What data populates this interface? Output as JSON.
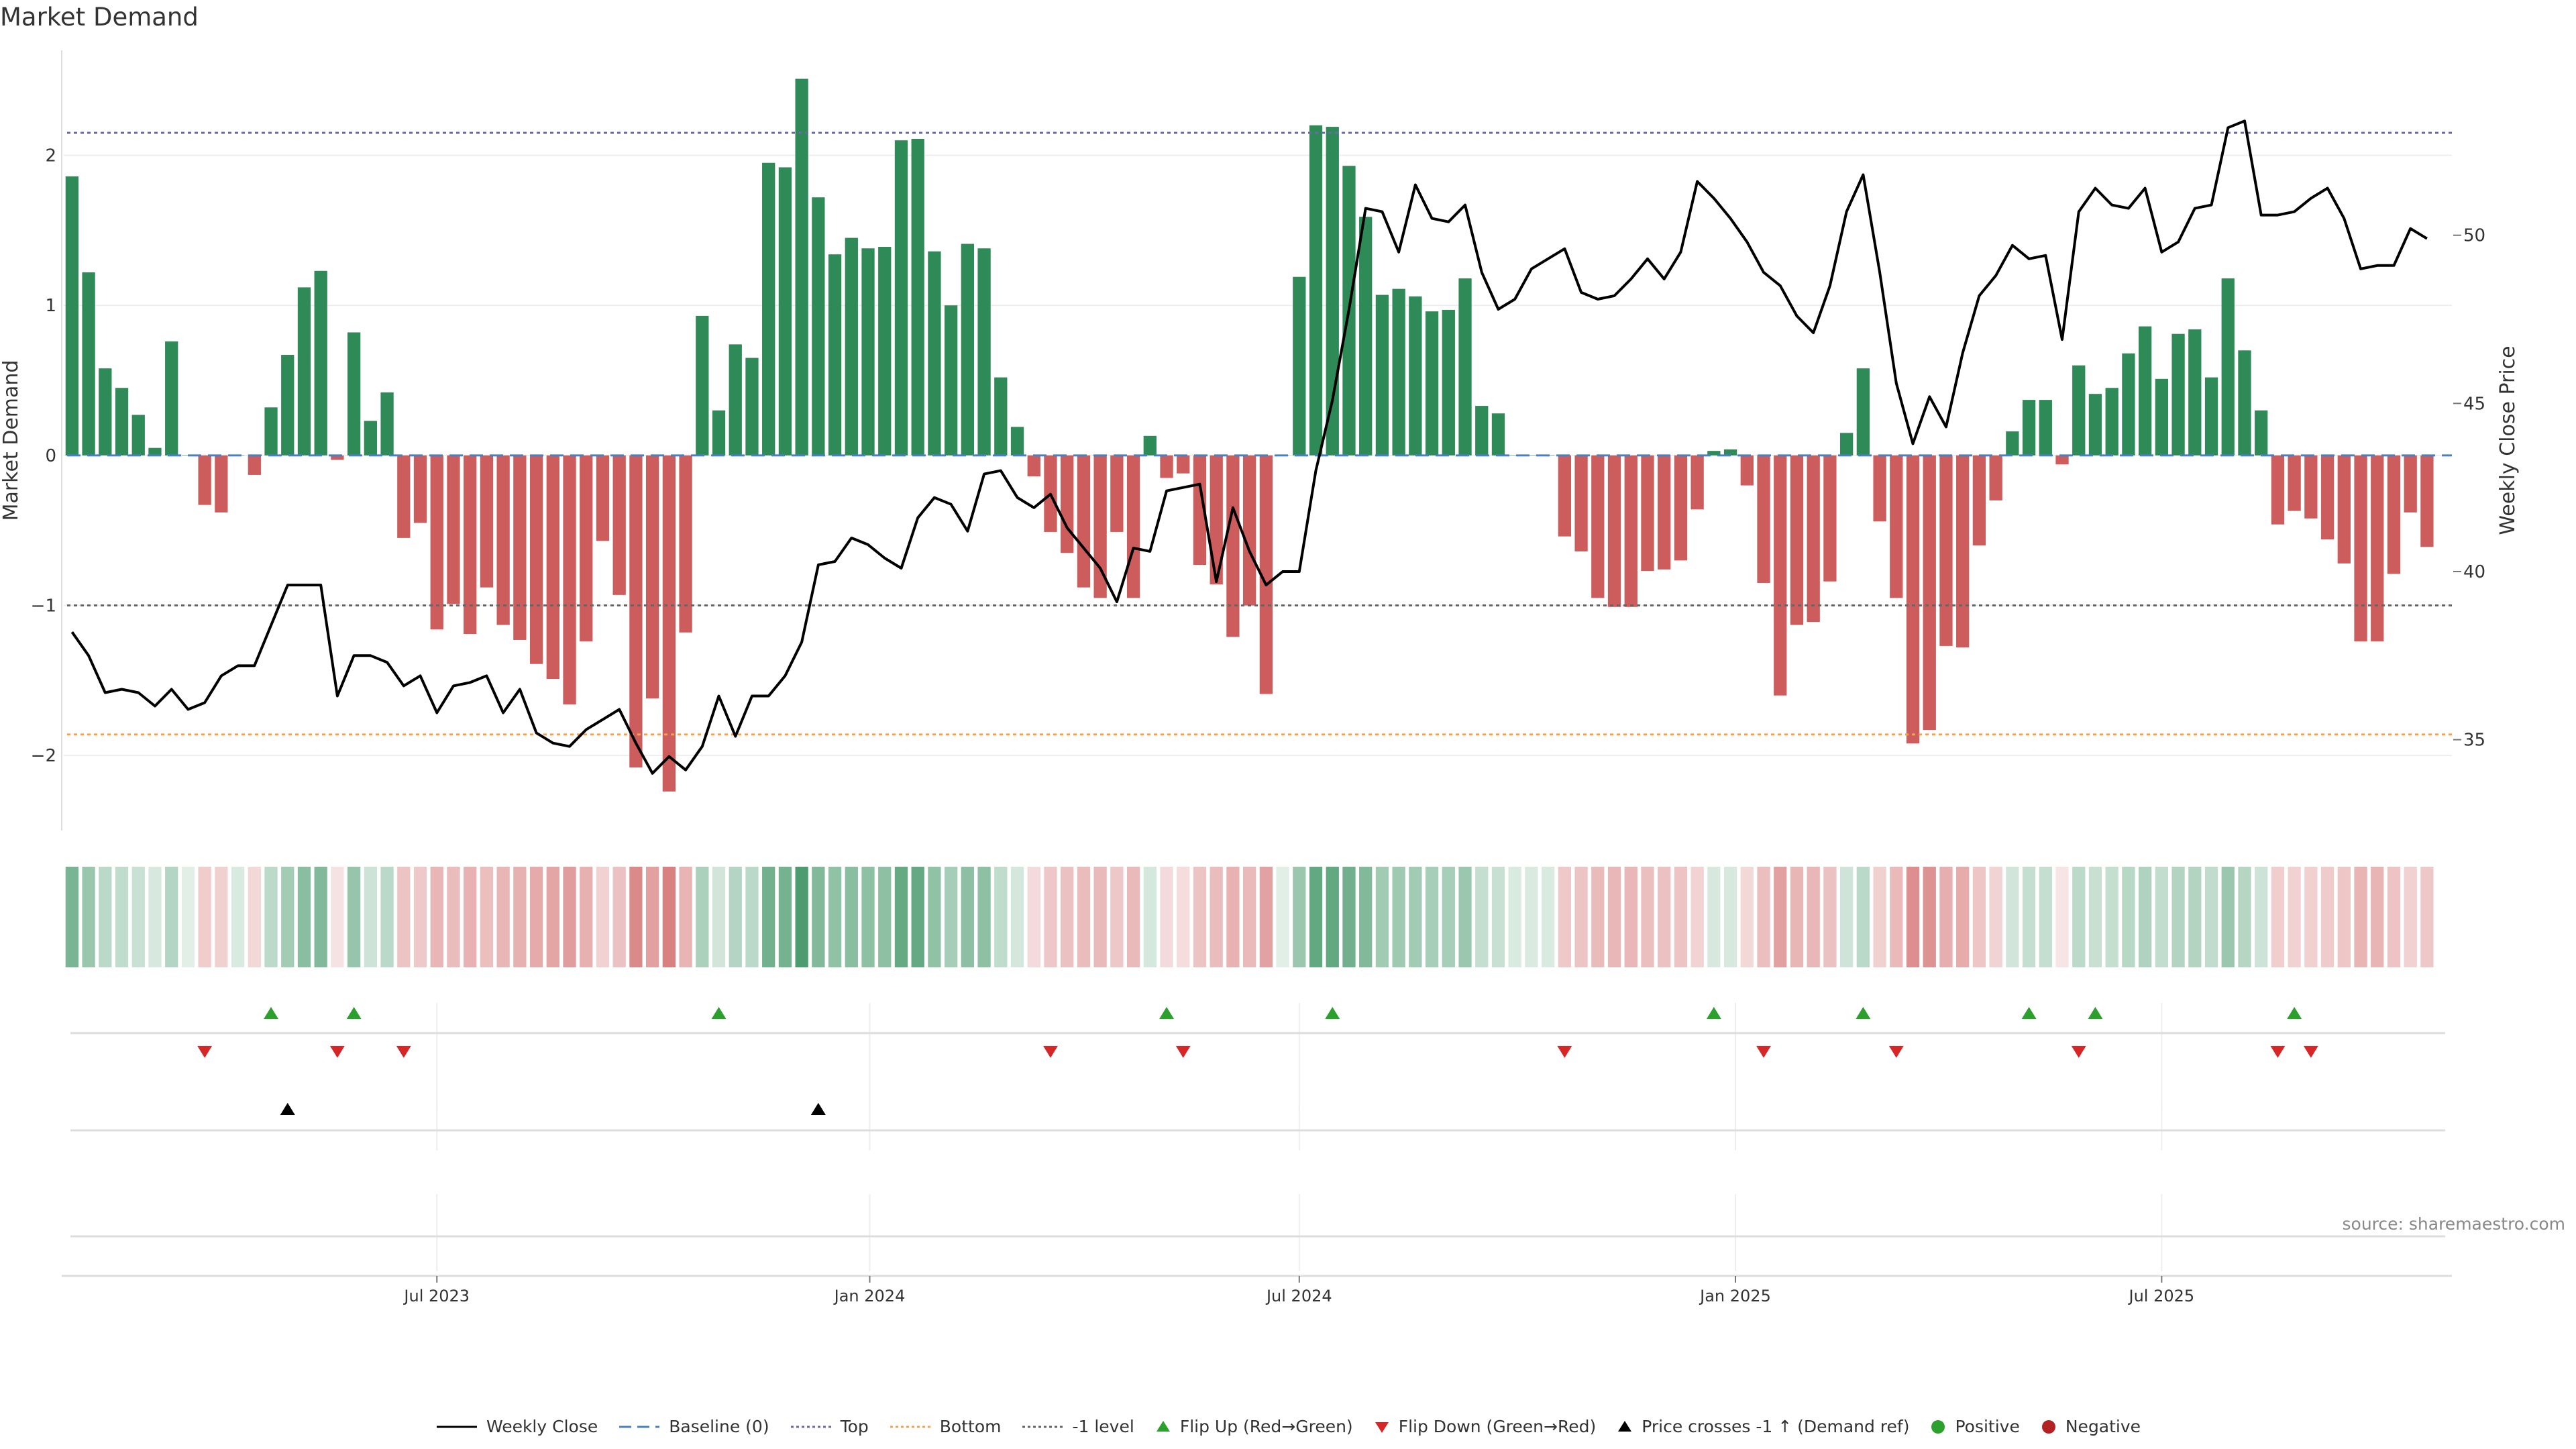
{
  "title": "Market Demand",
  "source_note": "source: sharemaestro.com",
  "colors": {
    "positive": "#2e8b57",
    "negative": "#cd5c5c",
    "price_line": "#000000",
    "baseline": "#4a7fc1",
    "top_line": "#6a6aa8",
    "bottom_line": "#f5a04a",
    "minus_one": "#666666",
    "flip_up": "#2ca02c",
    "flip_down": "#d62728",
    "price_cross": "#000000",
    "positive_dot": "#2ca02c",
    "negative_dot": "#b22222"
  },
  "legend": [
    {
      "label": "Weekly Close",
      "kind": "line",
      "color": "#000000",
      "dash": ""
    },
    {
      "label": "Baseline (0)",
      "kind": "line",
      "color": "#4a7fc1",
      "dash": "18,9"
    },
    {
      "label": "Top",
      "kind": "line",
      "color": "#6a6aa8",
      "dash": "4,4"
    },
    {
      "label": "Bottom",
      "kind": "line",
      "color": "#f5a04a",
      "dash": "4,4"
    },
    {
      "label": "-1 level",
      "kind": "line",
      "color": "#666666",
      "dash": "4,4"
    },
    {
      "label": "Flip Up (Red→Green)",
      "kind": "tri-up",
      "color": "#2ca02c"
    },
    {
      "label": "Flip Down (Green→Red)",
      "kind": "tri-down",
      "color": "#d62728"
    },
    {
      "label": "Price crosses -1 ↑ (Demand ref)",
      "kind": "tri-up",
      "color": "#000000"
    },
    {
      "label": "Positive",
      "kind": "dot",
      "color": "#2ca02c"
    },
    {
      "label": "Negative",
      "kind": "dot",
      "color": "#b22222"
    }
  ],
  "chart_data": {
    "type": "bar",
    "title": "Market Demand",
    "ylabel": "Market Demand",
    "y2label": "Weekly Close Price",
    "ylim": [
      -2.5,
      2.7
    ],
    "y2lim": [
      32.3,
      55.5
    ],
    "yticks": [
      -2,
      -1,
      0,
      1,
      2
    ],
    "y2ticks": [
      35,
      40,
      45,
      50
    ],
    "xlim_week": [
      0,
      144
    ],
    "xticks": [
      {
        "label": "Jul 2023",
        "week": 22
      },
      {
        "label": "Jan 2024",
        "week": 48.1
      },
      {
        "label": "Jul 2024",
        "week": 74
      },
      {
        "label": "Jan 2025",
        "week": 100.3
      },
      {
        "label": "Jul 2025",
        "week": 126
      }
    ],
    "reference_levels": {
      "baseline": 0,
      "top": 2.15,
      "bottom": -1.86,
      "minus_one": -1
    },
    "demand": [
      1.86,
      1.22,
      0.58,
      0.45,
      0.27,
      0.05,
      0.76,
      0.0,
      -0.33,
      -0.38,
      0.0,
      -0.13,
      0.32,
      0.67,
      1.12,
      1.23,
      -0.03,
      0.82,
      0.23,
      0.42,
      -0.55,
      -0.45,
      -1.16,
      -0.99,
      -1.19,
      -0.88,
      -1.13,
      -1.23,
      -1.39,
      -1.49,
      -1.66,
      -1.24,
      -0.57,
      -0.93,
      -2.08,
      -1.62,
      -2.24,
      -1.18,
      0.93,
      0.3,
      0.74,
      0.65,
      1.95,
      1.92,
      2.51,
      1.72,
      1.34,
      1.45,
      1.38,
      1.39,
      2.1,
      2.11,
      1.36,
      1.0,
      1.41,
      1.38,
      0.52,
      0.19,
      -0.14,
      -0.51,
      -0.65,
      -0.88,
      -0.95,
      -0.51,
      -0.95,
      0.13,
      -0.15,
      -0.12,
      -0.73,
      -0.86,
      -1.21,
      -1.0,
      -1.59,
      0.0,
      1.19,
      2.2,
      2.19,
      1.93,
      1.59,
      1.07,
      1.11,
      1.06,
      0.96,
      0.97,
      1.18,
      0.33,
      0.28,
      0.0,
      0.0,
      0.0,
      -0.54,
      -0.64,
      -0.95,
      -1.01,
      -1.01,
      -0.77,
      -0.76,
      -0.7,
      -0.36,
      0.03,
      0.04,
      -0.2,
      -0.85,
      -1.6,
      -1.13,
      -1.11,
      -0.84,
      0.15,
      0.58,
      -0.44,
      -0.95,
      -1.92,
      -1.83,
      -1.27,
      -1.28,
      -0.6,
      -0.3,
      0.16,
      0.37,
      0.37,
      -0.06,
      0.6,
      0.41,
      0.45,
      0.68,
      0.86,
      0.51,
      0.81,
      0.84,
      0.52,
      1.18,
      0.7,
      0.3,
      -0.46,
      -0.37,
      -0.42,
      -0.56,
      -0.72,
      -1.24,
      -1.24,
      -0.79,
      -0.38,
      -0.61
    ],
    "weekly_close": [
      38.2,
      37.5,
      36.4,
      36.5,
      36.4,
      36.0,
      36.5,
      35.9,
      36.1,
      36.9,
      37.2,
      37.2,
      38.4,
      39.6,
      39.6,
      39.6,
      36.3,
      37.5,
      37.5,
      37.3,
      36.6,
      36.9,
      35.8,
      36.6,
      36.7,
      36.9,
      35.8,
      36.5,
      35.2,
      34.9,
      34.8,
      35.3,
      35.6,
      35.9,
      34.9,
      34.0,
      34.5,
      34.1,
      34.8,
      36.3,
      35.1,
      36.3,
      36.3,
      36.9,
      37.9,
      40.2,
      40.3,
      41.0,
      40.8,
      40.4,
      40.1,
      41.6,
      42.2,
      42.0,
      41.2,
      42.9,
      43.0,
      42.2,
      41.9,
      42.3,
      41.3,
      40.7,
      40.1,
      39.1,
      40.7,
      40.6,
      42.4,
      42.5,
      42.6,
      39.7,
      41.9,
      40.6,
      39.6,
      40.0,
      40.0,
      43.0,
      45.1,
      47.8,
      50.8,
      50.7,
      49.5,
      51.5,
      50.5,
      50.4,
      50.9,
      48.9,
      47.8,
      48.1,
      49.0,
      49.3,
      49.6,
      48.3,
      48.1,
      48.2,
      48.7,
      49.3,
      48.7,
      49.5,
      51.6,
      51.1,
      50.5,
      49.8,
      48.9,
      48.5,
      47.6,
      47.1,
      48.5,
      50.7,
      51.8,
      48.9,
      45.6,
      43.8,
      45.2,
      44.3,
      46.5,
      48.2,
      48.8,
      49.7,
      49.3,
      49.4,
      46.9,
      50.7,
      51.4,
      50.9,
      50.8,
      51.4,
      49.5,
      49.8,
      50.8,
      50.9,
      53.2,
      53.4,
      50.6,
      50.6,
      50.7,
      51.1,
      51.4,
      50.5,
      49.0,
      49.1,
      49.1,
      50.2,
      49.9
    ],
    "heat_strip_shade": [
      0.64,
      0.49,
      0.33,
      0.3,
      0.26,
      0.19,
      0.36,
      0.14,
      0.31,
      0.29,
      0.18,
      0.24,
      0.32,
      0.44,
      0.56,
      0.6,
      0.18,
      0.5,
      0.24,
      0.33,
      0.36,
      0.33,
      0.45,
      0.41,
      0.47,
      0.39,
      0.45,
      0.48,
      0.52,
      0.55,
      0.6,
      0.48,
      0.28,
      0.38,
      0.72,
      0.58,
      0.77,
      0.46,
      0.4,
      0.22,
      0.36,
      0.33,
      0.67,
      0.66,
      0.85,
      0.6,
      0.53,
      0.56,
      0.54,
      0.54,
      0.73,
      0.74,
      0.53,
      0.43,
      0.55,
      0.54,
      0.3,
      0.21,
      0.23,
      0.34,
      0.38,
      0.41,
      0.43,
      0.34,
      0.43,
      0.2,
      0.22,
      0.21,
      0.36,
      0.41,
      0.47,
      0.43,
      0.57,
      0.14,
      0.48,
      0.75,
      0.75,
      0.68,
      0.6,
      0.45,
      0.46,
      0.45,
      0.42,
      0.42,
      0.48,
      0.28,
      0.27,
      0.18,
      0.18,
      0.18,
      0.33,
      0.36,
      0.42,
      0.44,
      0.44,
      0.39,
      0.38,
      0.37,
      0.27,
      0.19,
      0.19,
      0.24,
      0.39,
      0.58,
      0.45,
      0.44,
      0.38,
      0.23,
      0.33,
      0.29,
      0.43,
      0.69,
      0.66,
      0.5,
      0.51,
      0.35,
      0.27,
      0.22,
      0.28,
      0.28,
      0.16,
      0.32,
      0.27,
      0.28,
      0.34,
      0.38,
      0.29,
      0.37,
      0.37,
      0.3,
      0.48,
      0.35,
      0.24,
      0.3,
      0.28,
      0.29,
      0.32,
      0.35,
      0.46,
      0.46,
      0.37,
      0.28,
      0.34
    ],
    "flip_up_weeks": [
      12,
      17,
      39,
      66,
      76,
      99,
      108,
      118,
      122,
      134
    ],
    "flip_down_weeks": [
      8,
      16,
      20,
      59,
      67,
      90,
      102,
      110,
      121,
      133,
      135
    ],
    "price_cross_weeks": [
      13,
      45
    ]
  }
}
